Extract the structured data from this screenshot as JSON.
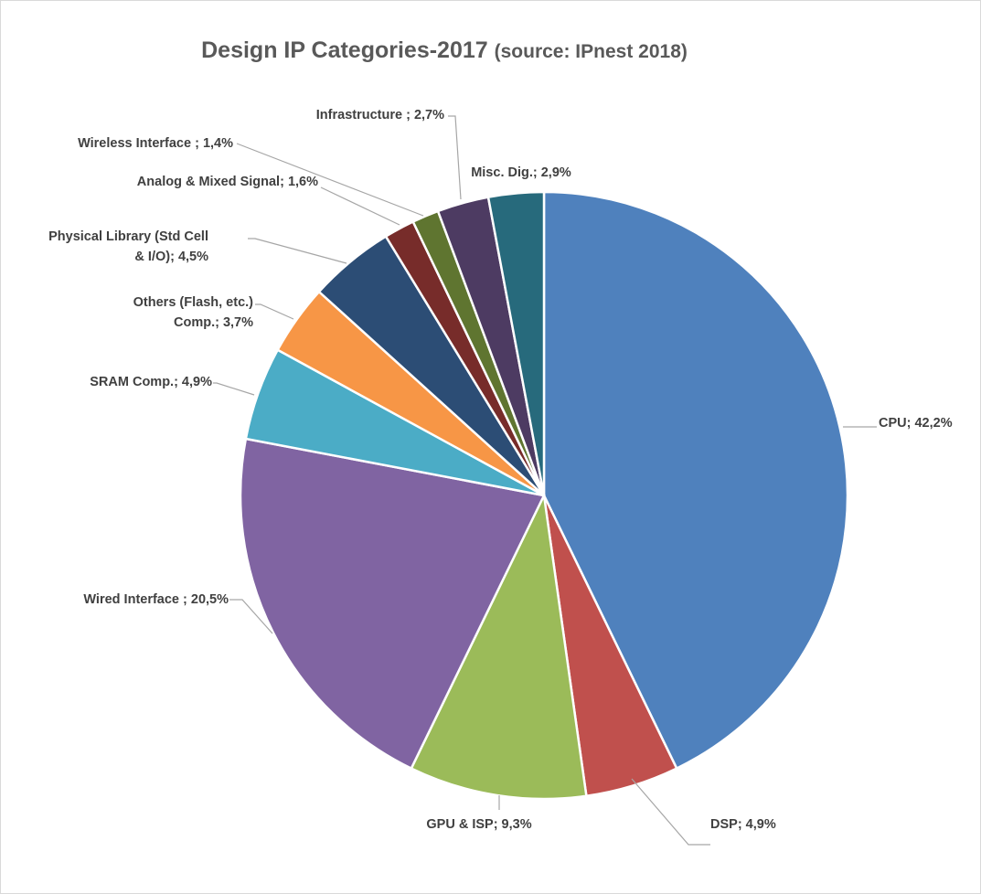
{
  "chart_data": {
    "type": "pie",
    "title": "Design IP Categories-2017",
    "subtitle": "(source: IPnest 2018)",
    "start_angle_deg": 0,
    "direction": "clockwise",
    "slices": [
      {
        "name": "CPU",
        "value": 42.2,
        "label_lines": [
          "CPU; 42,2%"
        ],
        "color": "#4F81BD"
      },
      {
        "name": "DSP",
        "value": 4.9,
        "label_lines": [
          "DSP; 4,9%"
        ],
        "color": "#C0504D"
      },
      {
        "name": "GPU & ISP",
        "value": 9.3,
        "label_lines": [
          "GPU & ISP; 9,3%"
        ],
        "color": "#9BBB59"
      },
      {
        "name": "Wired Interface",
        "value": 20.5,
        "label_lines": [
          "Wired Interface ; 20,5%"
        ],
        "color": "#8064A2"
      },
      {
        "name": "SRAM Comp.",
        "value": 4.9,
        "label_lines": [
          "SRAM Comp.; 4,9%"
        ],
        "color": "#4BACC6"
      },
      {
        "name": "Others (Flash, etc.) Comp.",
        "value": 3.7,
        "label_lines": [
          "Others  (Flash, etc.)",
          "Comp.; 3,7%"
        ],
        "color": "#F79646"
      },
      {
        "name": "Physical Library (Std Cell & I/O)",
        "value": 4.5,
        "label_lines": [
          "Physical Library (Std Cell",
          "& I/O); 4,5%"
        ],
        "color": "#2C4D75"
      },
      {
        "name": "Analog & Mixed Signal",
        "value": 1.6,
        "label_lines": [
          "Analog & Mixed Signal; 1,6%"
        ],
        "color": "#772C2A"
      },
      {
        "name": "Wireless Interface",
        "value": 1.4,
        "label_lines": [
          "Wireless Interface ; 1,4%"
        ],
        "color": "#5F7530"
      },
      {
        "name": "Infrastructure",
        "value": 2.7,
        "label_lines": [
          "Infrastructure ; 2,7%"
        ],
        "color": "#4D3B62"
      },
      {
        "name": "Misc. Dig.",
        "value": 2.9,
        "label_lines": [
          "Misc. Dig.; 2,9%"
        ],
        "color": "#276A7C"
      }
    ]
  }
}
